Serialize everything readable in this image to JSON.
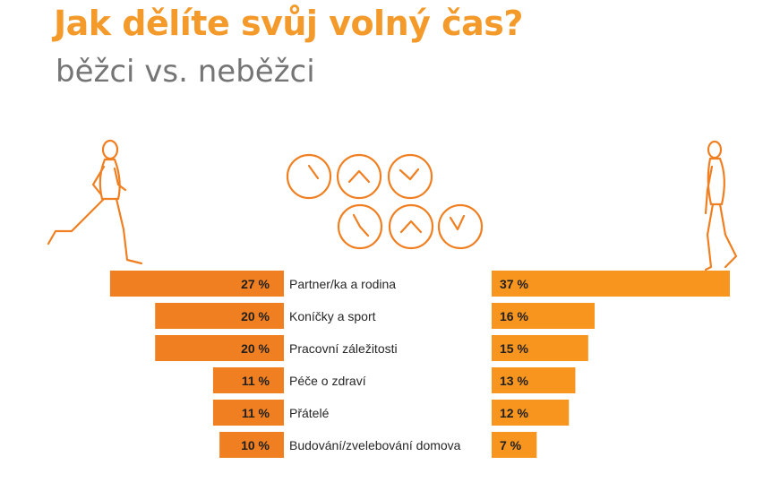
{
  "title": "Jak dělíte svůj volný čas?",
  "subtitle": "běžci vs. neběžci",
  "colors": {
    "title": "#f39a2a",
    "subtitle": "#757575",
    "left_bar": "#f07f21",
    "right_bar": "#f7951f",
    "icon_stroke": "#f07f21"
  },
  "icons": {
    "left_figure": "runner-icon",
    "right_figure": "walker-icon",
    "clocks": "clock-icon"
  },
  "chart_data": {
    "type": "bar",
    "orientation": "horizontal",
    "layout": "back-to-back",
    "categories": [
      "Partner/ka a rodina",
      "Koníčky a sport",
      "Pracovní záležitosti",
      "Péče o zdraví",
      "Přátelé",
      "Budování/zvelebování domova"
    ],
    "series": [
      {
        "values": [
          27,
          20,
          20,
          11,
          11,
          10
        ],
        "labels": [
          "27 %",
          "20 %",
          "20 %",
          "11 %",
          "11 %",
          "10 %"
        ]
      },
      {
        "values": [
          37,
          16,
          15,
          13,
          12,
          7
        ],
        "labels": [
          "37 %",
          "16 %",
          "15 %",
          "13 %",
          "12 %",
          "7 %"
        ]
      }
    ],
    "unit": "%",
    "xlim": [
      0,
      37
    ]
  }
}
